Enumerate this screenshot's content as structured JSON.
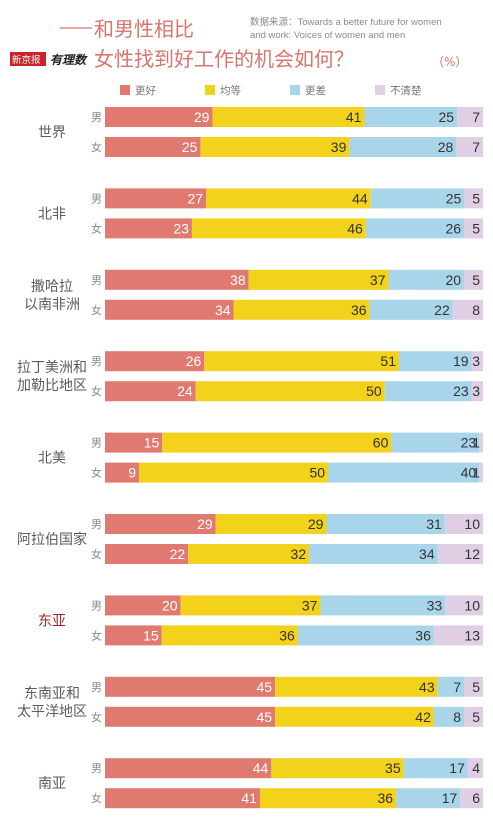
{
  "header": {
    "title_line1": "和男性相比",
    "title_line2": "女性找到好工作的机会如何？",
    "unit": "（%）",
    "source_line1": "数据来源：Towards a better future for women",
    "source_line2": "and work: Voices of women and men",
    "logo_text": "新京报",
    "logo_script": "有理数"
  },
  "legend": [
    {
      "label": "更好",
      "color": "#e07a70"
    },
    {
      "label": "均等",
      "color": "#f3d21c"
    },
    {
      "label": "更差",
      "color": "#a9d5ea"
    },
    {
      "label": "不清楚",
      "color": "#e0cfe4"
    }
  ],
  "chart_data": {
    "type": "bar",
    "orientation": "horizontal",
    "stacked": true,
    "percent_axis": true,
    "series_names": [
      "更好",
      "均等",
      "更差",
      "不清楚"
    ],
    "groups": [
      {
        "region": [
          "世界"
        ],
        "highlight": false,
        "rows": [
          {
            "gender": "男",
            "values": [
              29,
              41,
              25,
              7
            ]
          },
          {
            "gender": "女",
            "values": [
              25,
              39,
              28,
              7
            ]
          }
        ]
      },
      {
        "region": [
          "北非"
        ],
        "highlight": false,
        "rows": [
          {
            "gender": "男",
            "values": [
              27,
              44,
              25,
              5
            ]
          },
          {
            "gender": "女",
            "values": [
              23,
              46,
              26,
              5
            ]
          }
        ]
      },
      {
        "region": [
          "撒哈拉",
          "以南非洲"
        ],
        "highlight": false,
        "rows": [
          {
            "gender": "男",
            "values": [
              38,
              37,
              20,
              5
            ]
          },
          {
            "gender": "女",
            "values": [
              34,
              36,
              22,
              8
            ]
          }
        ]
      },
      {
        "region": [
          "拉丁美洲和",
          "加勒比地区"
        ],
        "highlight": false,
        "rows": [
          {
            "gender": "男",
            "values": [
              26,
              51,
              19,
              3
            ]
          },
          {
            "gender": "女",
            "values": [
              24,
              50,
              23,
              3
            ]
          }
        ]
      },
      {
        "region": [
          "北美"
        ],
        "highlight": false,
        "rows": [
          {
            "gender": "男",
            "values": [
              15,
              60,
              23,
              1
            ]
          },
          {
            "gender": "女",
            "values": [
              9,
              50,
              40,
              1
            ]
          }
        ]
      },
      {
        "region": [
          "阿拉伯国家"
        ],
        "highlight": false,
        "rows": [
          {
            "gender": "男",
            "values": [
              29,
              29,
              31,
              10
            ]
          },
          {
            "gender": "女",
            "values": [
              22,
              32,
              34,
              12
            ]
          }
        ]
      },
      {
        "region": [
          "东亚"
        ],
        "highlight": true,
        "rows": [
          {
            "gender": "男",
            "values": [
              20,
              37,
              33,
              10
            ]
          },
          {
            "gender": "女",
            "values": [
              15,
              36,
              36,
              13
            ]
          }
        ]
      },
      {
        "region": [
          "东南亚和",
          "太平洋地区"
        ],
        "highlight": false,
        "rows": [
          {
            "gender": "男",
            "values": [
              45,
              43,
              7,
              5
            ]
          },
          {
            "gender": "女",
            "values": [
              45,
              42,
              8,
              5
            ]
          }
        ]
      },
      {
        "region": [
          "南亚"
        ],
        "highlight": false,
        "rows": [
          {
            "gender": "男",
            "values": [
              44,
              35,
              17,
              4
            ]
          },
          {
            "gender": "女",
            "values": [
              41,
              36,
              17,
              6
            ]
          }
        ]
      }
    ]
  }
}
